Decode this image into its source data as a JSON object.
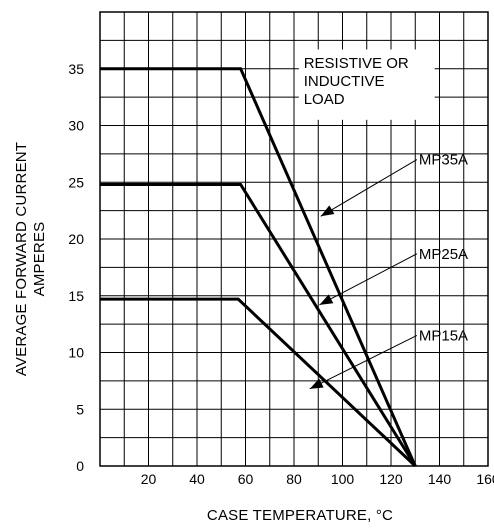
{
  "chart_data": {
    "type": "line",
    "xlabel": "CASE TEMPERATURE, °C",
    "ylabel": [
      "AVERAGE FORWARD CURRENT",
      "AMPERES"
    ],
    "xlim": [
      0,
      160
    ],
    "ylim": [
      0,
      40
    ],
    "xticks": [
      20,
      40,
      60,
      80,
      100,
      120,
      140,
      160
    ],
    "yticks": [
      0,
      5,
      10,
      15,
      20,
      25,
      30,
      35
    ],
    "grid": true,
    "annotation": [
      "RESISTIVE  OR",
      "INDUCTIVE",
      "LOAD"
    ],
    "series": [
      {
        "name": "MP35A",
        "x": [
          0,
          58,
          130
        ],
        "y": [
          35,
          35,
          0
        ]
      },
      {
        "name": "MP25A",
        "x": [
          0,
          58,
          130
        ],
        "y": [
          24.8,
          24.8,
          0
        ]
      },
      {
        "name": "MP15A",
        "x": [
          0,
          57,
          130
        ],
        "y": [
          14.7,
          14.7,
          0
        ]
      }
    ]
  }
}
